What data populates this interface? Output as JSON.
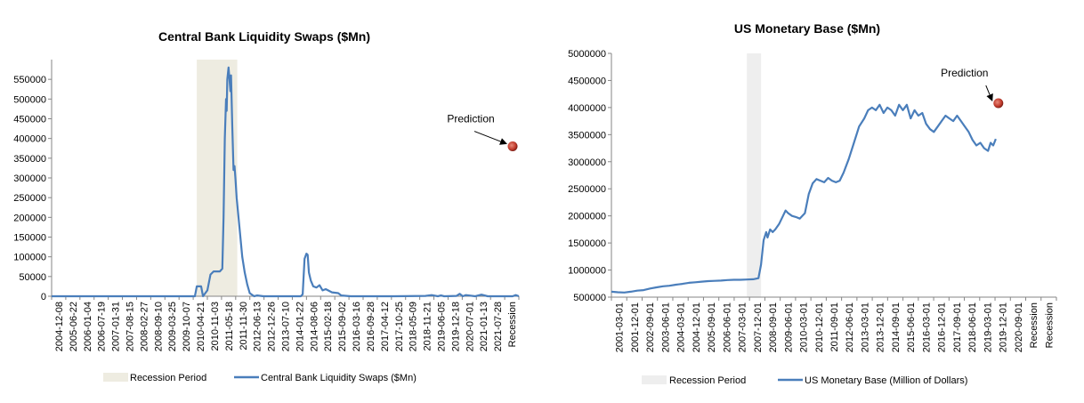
{
  "chart_data": [
    {
      "type": "line",
      "title": "Central Bank Liquidity Swaps ($Mn)",
      "xlabel": "",
      "ylabel": "",
      "ylim": [
        0,
        600000
      ],
      "y_ticks": [
        0,
        50000,
        100000,
        150000,
        200000,
        250000,
        300000,
        350000,
        400000,
        450000,
        500000,
        550000
      ],
      "x_tick_labels": [
        "2004-12-08",
        "2005-06-22",
        "2006-01-04",
        "2006-07-19",
        "2007-01-31",
        "2007-08-15",
        "2008-02-27",
        "2008-09-10",
        "2009-03-25",
        "2009-10-07",
        "2010-04-21",
        "2010-11-03",
        "2011-05-18",
        "2011-11-30",
        "2012-06-13",
        "2012-12-26",
        "2013-07-10",
        "2014-01-22",
        "2014-08-06",
        "2015-02-18",
        "2015-09-02",
        "2016-03-16",
        "2016-09-28",
        "2017-04-12",
        "2017-10-25",
        "2018-05-09",
        "2018-11-21",
        "2019-06-05",
        "2019-12-18",
        "2020-07-01",
        "2021-01-13",
        "2021-07-28",
        "Recession"
      ],
      "recession_shading": {
        "x_start": 23.3,
        "x_end": 29.8
      },
      "series": [
        {
          "name": "Central Bank Liquidity Swaps ($Mn)",
          "points": [
            [
              0,
              0
            ],
            [
              23,
              0
            ],
            [
              23.3,
              25000
            ],
            [
              24,
              25000
            ],
            [
              24.3,
              0
            ],
            [
              25,
              15000
            ],
            [
              25.5,
              55000
            ],
            [
              26,
              63000
            ],
            [
              27,
              63000
            ],
            [
              27.4,
              70000
            ],
            [
              27.6,
              200000
            ],
            [
              27.8,
              400000
            ],
            [
              28.0,
              500000
            ],
            [
              28.1,
              470000
            ],
            [
              28.2,
              550000
            ],
            [
              28.4,
              580000
            ],
            [
              28.5,
              560000
            ],
            [
              28.7,
              520000
            ],
            [
              28.8,
              560000
            ],
            [
              29,
              430000
            ],
            [
              29.2,
              320000
            ],
            [
              29.35,
              330000
            ],
            [
              29.5,
              300000
            ],
            [
              29.7,
              250000
            ],
            [
              30,
              200000
            ],
            [
              30.3,
              150000
            ],
            [
              30.6,
              100000
            ],
            [
              31,
              60000
            ],
            [
              31.4,
              30000
            ],
            [
              31.8,
              8000
            ],
            [
              32.5,
              0
            ],
            [
              33,
              2000
            ],
            [
              34,
              0
            ],
            [
              40,
              0
            ],
            [
              40.3,
              5000
            ],
            [
              40.6,
              95000
            ],
            [
              40.9,
              108000
            ],
            [
              41.1,
              105000
            ],
            [
              41.3,
              60000
            ],
            [
              41.6,
              40000
            ],
            [
              42,
              25000
            ],
            [
              42.5,
              22000
            ],
            [
              43,
              28000
            ],
            [
              43.5,
              15000
            ],
            [
              44,
              18000
            ],
            [
              45,
              10000
            ],
            [
              46,
              8000
            ],
            [
              46.5,
              2000
            ],
            [
              48,
              0
            ],
            [
              55,
              0
            ],
            [
              60,
              1000
            ],
            [
              61,
              3000
            ],
            [
              62,
              0
            ],
            [
              62.5,
              2000
            ],
            [
              63,
              0
            ],
            [
              65,
              1000
            ],
            [
              65.5,
              6000
            ],
            [
              66,
              0
            ],
            [
              66.5,
              3000
            ],
            [
              68,
              0
            ],
            [
              69,
              4000
            ],
            [
              70,
              0
            ],
            [
              74,
              0
            ],
            [
              74.5,
              3000
            ],
            [
              75,
              0
            ]
          ]
        }
      ],
      "prediction": {
        "label": "Prediction",
        "x": 74,
        "y": 380000
      },
      "legend": [
        "Recession Period",
        "Central Bank Liquidity Swaps ($Mn)"
      ],
      "legend_position": "bottom",
      "grid": false
    },
    {
      "type": "line",
      "title": "US Monetary Base ($Mn)",
      "xlabel": "",
      "ylabel": "",
      "ylim": [
        500000,
        5000000
      ],
      "y_ticks": [
        500000,
        1000000,
        1500000,
        2000000,
        2500000,
        3000000,
        3500000,
        4000000,
        4500000,
        5000000
      ],
      "x_tick_labels": [
        "2001-03-01",
        "2001-12-01",
        "2002-09-01",
        "2003-06-01",
        "2004-03-01",
        "2004-12-01",
        "2005-09-01",
        "2006-06-01",
        "2007-03-01",
        "2007-12-01",
        "2008-09-01",
        "2009-06-01",
        "2010-03-01",
        "2010-12-01",
        "2011-09-01",
        "2012-06-01",
        "2013-03-01",
        "2013-12-01",
        "2014-09-01",
        "2015-06-01",
        "2016-03-01",
        "2016-12-01",
        "2017-09-01",
        "2018-06-01",
        "2019-03-01",
        "2019-12-01",
        "2020-09-01",
        "Recession",
        "Recession"
      ],
      "recession_shading": {
        "x_start": 10.5,
        "x_end": 11.6
      },
      "series": [
        {
          "name": "US Monetary Base (Million of Dollars)",
          "points": [
            [
              0,
              600000
            ],
            [
              0.5,
              590000
            ],
            [
              1,
              585000
            ],
            [
              1.5,
              600000
            ],
            [
              2,
              620000
            ],
            [
              2.5,
              630000
            ],
            [
              3,
              660000
            ],
            [
              3.5,
              680000
            ],
            [
              4,
              700000
            ],
            [
              4.5,
              710000
            ],
            [
              5,
              730000
            ],
            [
              5.5,
              745000
            ],
            [
              6,
              765000
            ],
            [
              6.5,
              775000
            ],
            [
              7,
              785000
            ],
            [
              7.5,
              795000
            ],
            [
              8,
              800000
            ],
            [
              8.5,
              805000
            ],
            [
              9,
              815000
            ],
            [
              9.5,
              820000
            ],
            [
              10,
              820000
            ],
            [
              10.5,
              825000
            ],
            [
              11,
              830000
            ],
            [
              11.4,
              850000
            ],
            [
              11.6,
              1100000
            ],
            [
              11.8,
              1550000
            ],
            [
              12,
              1700000
            ],
            [
              12.1,
              1600000
            ],
            [
              12.3,
              1750000
            ],
            [
              12.5,
              1700000
            ],
            [
              12.7,
              1750000
            ],
            [
              13,
              1850000
            ],
            [
              13.3,
              2000000
            ],
            [
              13.5,
              2100000
            ],
            [
              13.7,
              2050000
            ],
            [
              14,
              2000000
            ],
            [
              14.3,
              1980000
            ],
            [
              14.6,
              1950000
            ],
            [
              15,
              2050000
            ],
            [
              15.3,
              2400000
            ],
            [
              15.6,
              2600000
            ],
            [
              15.9,
              2680000
            ],
            [
              16.2,
              2650000
            ],
            [
              16.5,
              2620000
            ],
            [
              16.8,
              2700000
            ],
            [
              17.1,
              2650000
            ],
            [
              17.4,
              2620000
            ],
            [
              17.7,
              2650000
            ],
            [
              18,
              2800000
            ],
            [
              18.4,
              3050000
            ],
            [
              18.8,
              3350000
            ],
            [
              19.2,
              3650000
            ],
            [
              19.6,
              3800000
            ],
            [
              19.9,
              3950000
            ],
            [
              20.2,
              4000000
            ],
            [
              20.5,
              3950000
            ],
            [
              20.8,
              4050000
            ],
            [
              21.1,
              3900000
            ],
            [
              21.4,
              4000000
            ],
            [
              21.7,
              3950000
            ],
            [
              22,
              3850000
            ],
            [
              22.3,
              4050000
            ],
            [
              22.6,
              3950000
            ],
            [
              22.9,
              4050000
            ],
            [
              23.2,
              3800000
            ],
            [
              23.5,
              3950000
            ],
            [
              23.8,
              3850000
            ],
            [
              24.1,
              3900000
            ],
            [
              24.4,
              3700000
            ],
            [
              24.7,
              3600000
            ],
            [
              25,
              3550000
            ],
            [
              25.3,
              3650000
            ],
            [
              25.6,
              3750000
            ],
            [
              25.9,
              3850000
            ],
            [
              26.2,
              3800000
            ],
            [
              26.5,
              3750000
            ],
            [
              26.8,
              3850000
            ],
            [
              27.1,
              3750000
            ],
            [
              27.4,
              3650000
            ],
            [
              27.7,
              3550000
            ],
            [
              28,
              3400000
            ],
            [
              28.3,
              3300000
            ],
            [
              28.6,
              3350000
            ],
            [
              28.9,
              3250000
            ],
            [
              29.2,
              3200000
            ],
            [
              29.4,
              3350000
            ],
            [
              29.6,
              3300000
            ],
            [
              29.8,
              3420000
            ]
          ]
        }
      ],
      "prediction": {
        "label": "Prediction",
        "x": 30.0,
        "y": 4080000
      },
      "legend": [
        "Recession Period",
        "US Monetary Base (Million of Dollars)"
      ],
      "legend_position": "bottom",
      "grid": false
    }
  ],
  "colors": {
    "line": "#4a7ebb",
    "recession_fill": "#eeece1",
    "recession_fill_2": "#eeeeee",
    "prediction_dot": "#c0392b"
  }
}
